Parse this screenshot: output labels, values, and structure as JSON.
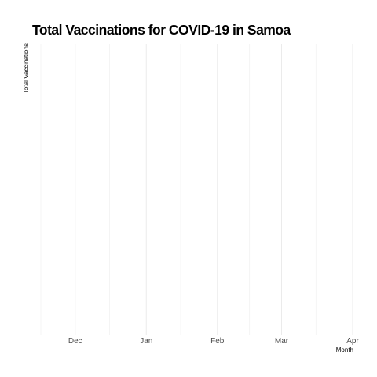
{
  "chart_data": {
    "type": "line",
    "title": "Total Vaccinations for COVID-19 in Samoa",
    "xlabel": "Month",
    "ylabel": "Total Vaccinations",
    "x_tick_labels": [
      "Dec",
      "Jan",
      "Feb",
      "Mar",
      "Apr"
    ],
    "x_tick_dates": [
      "2020-12-01",
      "2021-01-01",
      "2021-02-01",
      "2021-03-01",
      "2021-04-01"
    ],
    "x_range": [
      "2020-11-16",
      "2021-04-01"
    ],
    "series": [],
    "grid": true,
    "legend": "none",
    "colors": {
      "background": "#ffffff",
      "grid_major": "#ebebeb",
      "grid_minor": "#f2f2f2",
      "tick_label": "#4d4d4d",
      "title": "#000000"
    }
  }
}
